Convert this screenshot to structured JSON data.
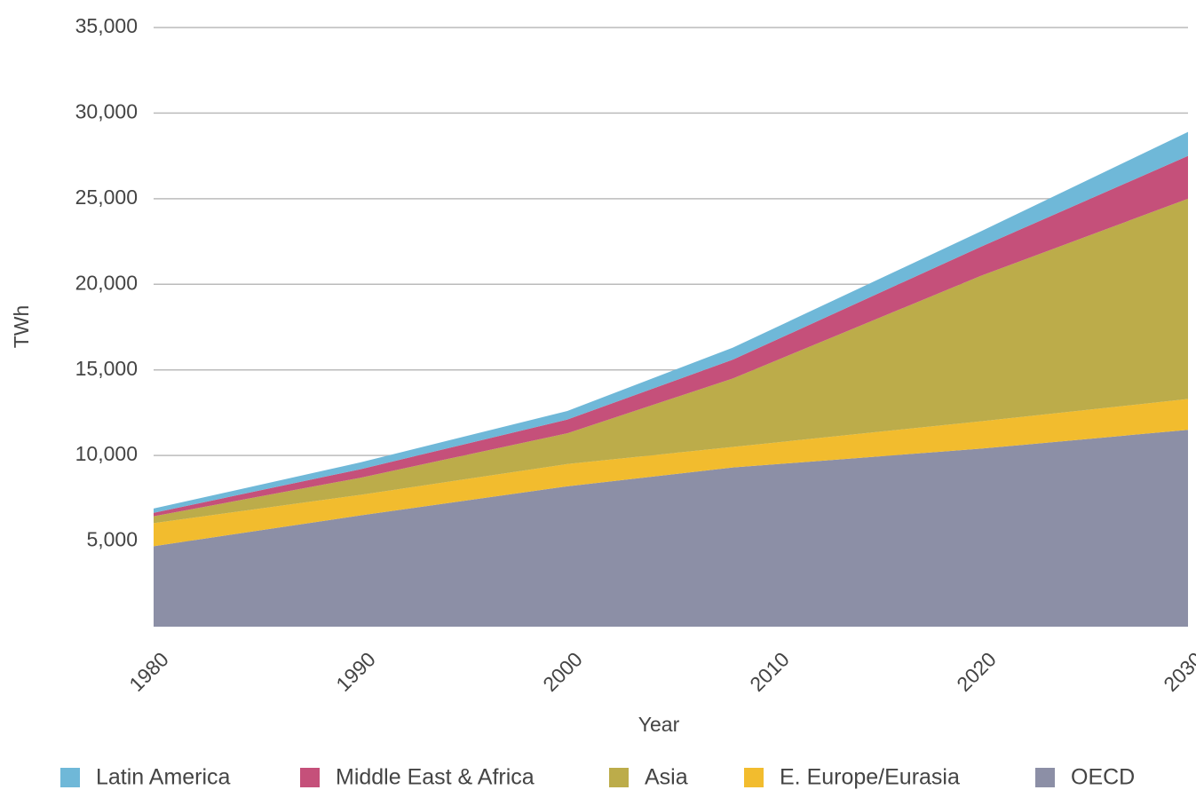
{
  "chart_data": {
    "type": "stacked_area",
    "x": [
      1980,
      1990,
      2000,
      2008,
      2020,
      2030
    ],
    "series": [
      {
        "name": "Latin America",
        "color": "#6fb8d8",
        "values": [
          250,
          400,
          500,
          700,
          900,
          1400
        ]
      },
      {
        "name": "Middle East & Africa",
        "color": "#c5507a",
        "values": [
          200,
          500,
          800,
          1100,
          1700,
          2500
        ]
      },
      {
        "name": "Asia",
        "color": "#bcac4a",
        "values": [
          400,
          1000,
          1800,
          4000,
          8500,
          11700
        ]
      },
      {
        "name": "E. Europe/Eurasia",
        "color": "#f2bc2e",
        "values": [
          1350,
          1200,
          1300,
          1200,
          1600,
          1800
        ]
      },
      {
        "name": "OECD",
        "color": "#8c8fa6",
        "values": [
          4700,
          6500,
          8200,
          9300,
          10400,
          11500
        ]
      }
    ],
    "xlabel": "Year",
    "ylabel": "TWh",
    "xlim": [
      1980,
      2030
    ],
    "xticks": [
      1980,
      1990,
      2000,
      2010,
      2020,
      2030
    ],
    "ylim": [
      0,
      35000
    ],
    "yticks": [
      {
        "value": 5000,
        "label": "5,000"
      },
      {
        "value": 10000,
        "label": "10,000"
      },
      {
        "value": 15000,
        "label": "15,000"
      },
      {
        "value": 20000,
        "label": "20,000"
      },
      {
        "value": 25000,
        "label": "25,000"
      },
      {
        "value": 30000,
        "label": "30,000"
      },
      {
        "value": 35000,
        "label": "35,000"
      }
    ],
    "grid": true,
    "legend": "bottom"
  }
}
